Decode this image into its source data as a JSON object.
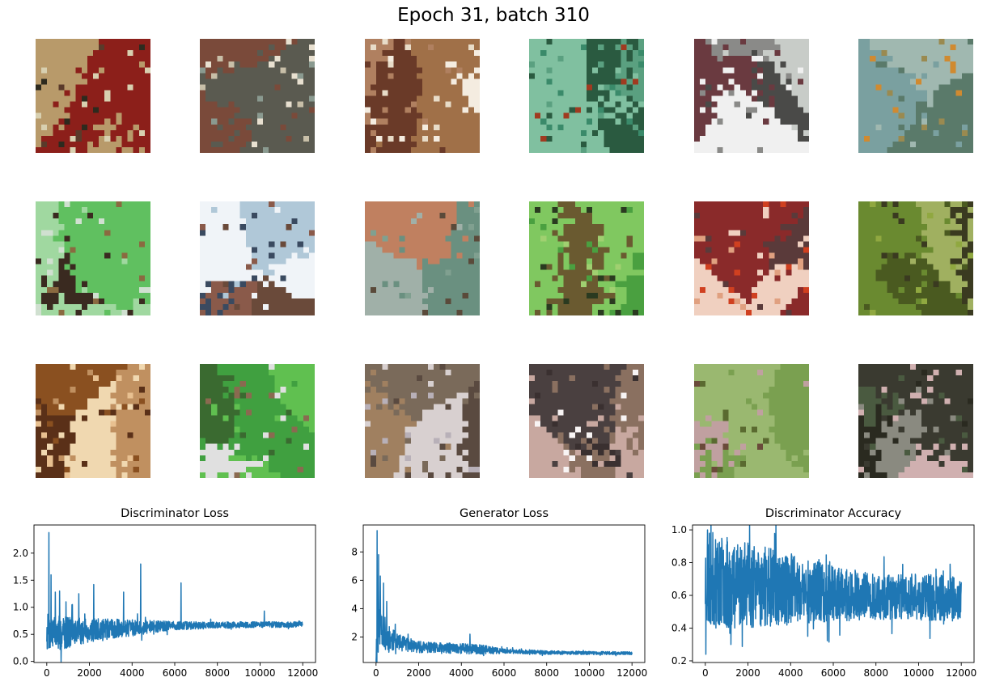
{
  "figure": {
    "title": "Epoch 31, batch 310"
  },
  "samples": {
    "rows": 3,
    "cols": 6,
    "palettes": [
      [
        "#5a3a2a",
        "#8c1f1a",
        "#b89a6a",
        "#2d2a1e",
        "#d8d0b0"
      ],
      [
        "#8a9a90",
        "#c8bfa8",
        "#7a4a3a",
        "#e8e0d0",
        "#5a5a50"
      ],
      [
        "#e8dcc8",
        "#a07048",
        "#6a3a28",
        "#f4ece0",
        "#b08060"
      ],
      [
        "#3a8a6a",
        "#5aa080",
        "#a03a20",
        "#2a5a40",
        "#80c0a0"
      ],
      [
        "#c8ccc8",
        "#f0f0f0",
        "#6a3a40",
        "#4a4a48",
        "#8a8a88"
      ],
      [
        "#7aa0a0",
        "#d08a30",
        "#9a8a50",
        "#5a7a6a",
        "#a0b8b0"
      ],
      [
        "#60c060",
        "#a0d8a0",
        "#3a2a20",
        "#d0e0d0",
        "#8a6a40"
      ],
      [
        "#b0c8d8",
        "#6a4a3a",
        "#f0f4f8",
        "#3a4a60",
        "#8a5a4a"
      ],
      [
        "#80a090",
        "#a0b0a8",
        "#c08060",
        "#5a4a3a",
        "#6a9080"
      ],
      [
        "#4aa040",
        "#80c860",
        "#2a3a20",
        "#6a5a30",
        "#a0d070"
      ],
      [
        "#d04020",
        "#5a3a3a",
        "#e0a080",
        "#8a2a2a",
        "#f0d0c0"
      ],
      [
        "#6a8a30",
        "#4a5a20",
        "#90a840",
        "#3a3a20",
        "#a0b060"
      ],
      [
        "#f0d8b0",
        "#8a5020",
        "#5a3018",
        "#c09060",
        "#e8c090"
      ],
      [
        "#40a040",
        "#e0e0e0",
        "#8a6a50",
        "#60c050",
        "#3a6a30"
      ],
      [
        "#d8d0d0",
        "#7a6a5a",
        "#a08060",
        "#5a4a40",
        "#b8b0b8"
      ],
      [
        "#f8f4f4",
        "#4a4040",
        "#8a7060",
        "#c8a8a0",
        "#3a3030"
      ],
      [
        "#7aa050",
        "#c0a0a0",
        "#5a6a30",
        "#9ab870",
        "#6a4a3a"
      ],
      [
        "#2a2a20",
        "#d0b0b0",
        "#4a5a40",
        "#8a8a80",
        "#3a3a30"
      ]
    ]
  },
  "chart_data": [
    {
      "type": "line",
      "title": "Discriminator Loss",
      "xlabel": "",
      "ylabel": "",
      "color": "#1f77b4",
      "xlim": [
        -600,
        12600
      ],
      "ylim": [
        -0.02,
        2.52
      ],
      "xticks": [
        0,
        2000,
        4000,
        6000,
        8000,
        10000,
        12000
      ],
      "xtick_labels": [
        "0",
        "2000",
        "4000",
        "6000",
        "8000",
        "10000",
        "12000"
      ],
      "yticks": [
        0.0,
        0.5,
        1.0,
        1.5,
        2.0
      ],
      "ytick_labels": [
        "0.0",
        "0.5",
        "1.0",
        "1.5",
        "2.0"
      ],
      "trend": {
        "x": [
          0,
          300,
          1000,
          2000,
          3000,
          4000,
          5000,
          6000,
          8000,
          10000,
          12000
        ],
        "y": [
          0.55,
          0.5,
          0.55,
          0.57,
          0.6,
          0.62,
          0.64,
          0.66,
          0.67,
          0.68,
          0.68
        ]
      },
      "band": {
        "x": [
          0,
          1000,
          2000,
          4000,
          6000,
          8000,
          12000
        ],
        "y": [
          0.35,
          0.3,
          0.22,
          0.15,
          0.08,
          0.06,
          0.05
        ]
      },
      "spikes": {
        "x": [
          100,
          200,
          400,
          600,
          900,
          1200,
          1500,
          2200,
          3600,
          4400,
          6300,
          10200
        ],
        "y": [
          2.38,
          1.6,
          1.28,
          1.3,
          1.1,
          1.05,
          1.25,
          1.42,
          1.28,
          1.8,
          1.45,
          0.93
        ]
      },
      "n_points": 1200,
      "seed": 7
    },
    {
      "type": "line",
      "title": "Generator Loss",
      "xlabel": "",
      "ylabel": "",
      "color": "#1f77b4",
      "xlim": [
        -600,
        12600
      ],
      "ylim": [
        0.2,
        9.9
      ],
      "xticks": [
        0,
        2000,
        4000,
        6000,
        8000,
        10000,
        12000
      ],
      "xtick_labels": [
        "0",
        "2000",
        "4000",
        "6000",
        "8000",
        "10000",
        "12000"
      ],
      "yticks": [
        2,
        4,
        6,
        8
      ],
      "ytick_labels": [
        "2",
        "4",
        "6",
        "8"
      ],
      "trend": {
        "x": [
          0,
          200,
          500,
          1000,
          2000,
          3000,
          4000,
          5000,
          6000,
          8000,
          12000
        ],
        "y": [
          1.0,
          3.0,
          2.0,
          1.6,
          1.3,
          1.2,
          1.2,
          1.1,
          1.0,
          0.9,
          0.85
        ]
      },
      "band": {
        "x": [
          0,
          300,
          1000,
          2000,
          5000,
          6000,
          12000
        ],
        "y": [
          1.5,
          1.3,
          0.6,
          0.4,
          0.35,
          0.15,
          0.1
        ]
      },
      "spikes": {
        "x": [
          50,
          120,
          200,
          350,
          500,
          900,
          1500,
          4400
        ],
        "y": [
          9.5,
          7.8,
          6.3,
          5.8,
          4.5,
          2.9,
          2.2,
          2.2
        ]
      },
      "n_points": 1200,
      "seed": 11
    },
    {
      "type": "line",
      "title": "Discriminator Accuracy",
      "xlabel": "",
      "ylabel": "",
      "color": "#1f77b4",
      "xlim": [
        -600,
        12600
      ],
      "ylim": [
        0.19,
        1.03
      ],
      "xticks": [
        0,
        2000,
        4000,
        6000,
        8000,
        10000,
        12000
      ],
      "xtick_labels": [
        "0",
        "2000",
        "4000",
        "6000",
        "8000",
        "10000",
        "12000"
      ],
      "yticks": [
        0.2,
        0.4,
        0.6,
        0.8,
        1.0
      ],
      "ytick_labels": [
        "0.2",
        "0.4",
        "0.6",
        "0.8",
        "1.0"
      ],
      "trend": {
        "x": [
          0,
          1000,
          2000,
          4000,
          6000,
          8000,
          10000,
          12000
        ],
        "y": [
          0.7,
          0.68,
          0.66,
          0.64,
          0.61,
          0.59,
          0.59,
          0.58
        ]
      },
      "band": {
        "x": [
          0,
          1000,
          2000,
          4000,
          6000,
          8000,
          12000
        ],
        "y": [
          0.3,
          0.28,
          0.26,
          0.22,
          0.17,
          0.14,
          0.14
        ]
      },
      "spikes": {
        "x": [
          30,
          100,
          200,
          1200,
          4800
        ],
        "y": [
          0.24,
          1.0,
          0.98,
          0.3,
          0.35
        ]
      },
      "n_points": 1400,
      "seed": 23
    }
  ]
}
